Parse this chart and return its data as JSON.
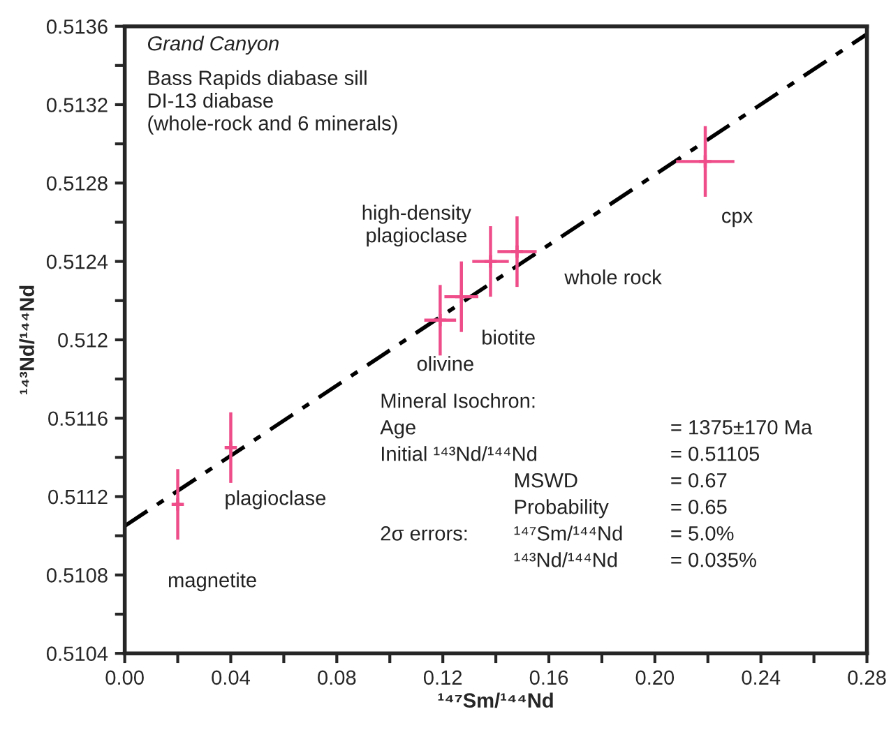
{
  "chart_data": {
    "type": "scatter",
    "title": "Grand Canyon",
    "subtitle": "Bass Rapids diabase sill\nDI-13 diabase\n(whole-rock and 6 minerals)",
    "xlabel": "¹⁴⁷Sm/¹⁴⁴Nd",
    "ylabel": "¹⁴³Nd/¹⁴⁴Nd",
    "xlim": [
      0,
      0.28
    ],
    "ylim": [
      0.5104,
      0.5136
    ],
    "xticks": [
      {
        "value": 0,
        "label": "0.00"
      },
      {
        "value": 0.02,
        "label": null
      },
      {
        "value": 0.04,
        "label": "0.04"
      },
      {
        "value": 0.06,
        "label": null
      },
      {
        "value": 0.08,
        "label": "0.08"
      },
      {
        "value": 0.1,
        "label": null
      },
      {
        "value": 0.12,
        "label": "0.12"
      },
      {
        "value": 0.14,
        "label": null
      },
      {
        "value": 0.16,
        "label": "0.16"
      },
      {
        "value": 0.18,
        "label": null
      },
      {
        "value": 0.2,
        "label": "0.20"
      },
      {
        "value": 0.22,
        "label": null
      },
      {
        "value": 0.24,
        "label": "0.24"
      },
      {
        "value": 0.26,
        "label": null
      },
      {
        "value": 0.28,
        "label": "0.28"
      }
    ],
    "yticks": [
      0.5104,
      {
        "value": 0.5106,
        "label": null
      },
      0.5108,
      {
        "value": 0.511,
        "label": null
      },
      0.5112,
      {
        "value": 0.5114,
        "label": null
      },
      0.5116,
      {
        "value": 0.5118,
        "label": null
      },
      0.512,
      {
        "value": 0.5122,
        "label": null
      },
      0.5124,
      {
        "value": 0.5126,
        "label": null
      },
      0.5128,
      {
        "value": 0.513,
        "label": null
      },
      0.5132,
      {
        "value": 0.5134,
        "label": null
      },
      0.5136
    ],
    "series": [
      {
        "color": "#ee4d8a",
        "marker": "cross",
        "x": [
          0.02,
          0.04,
          0.119,
          0.127,
          0.138,
          0.148,
          0.219
        ],
        "values": [
          0.51116,
          0.51145,
          0.5121,
          0.51222,
          0.5124,
          0.51245,
          0.51291
        ],
        "errors": [
          0.00018,
          0.00018,
          0.00018,
          0.00018,
          0.00018,
          0.00018,
          0.00018
        ],
        "xerrors": [
          0.001,
          0.002,
          0.006,
          0.0064,
          0.0069,
          0.0074,
          0.011
        ]
      },
      {
        "type": "line",
        "color": "#000000",
        "line_style": "dashed",
        "x": [
          0,
          0.28
        ],
        "values": [
          0.51105,
          0.51356
        ]
      }
    ],
    "annotations": [
      "magnetite",
      "plagioclase",
      "olivine",
      "biotite",
      "high-density\nplagioclase",
      "whole rock",
      "cpx",
      "Mineral Isochron:",
      "Age",
      "= 1375±170 Ma",
      "Initial ¹⁴³Nd/¹⁴⁴Nd",
      "= 0.51105",
      "MSWD",
      "= 0.67",
      "Probability",
      "= 0.65",
      "2σ errors:",
      "¹⁴⁷Sm/¹⁴⁴Nd",
      "= 5.0%",
      "¹⁴³Nd/¹⁴⁴Nd",
      "= 0.035%"
    ]
  }
}
